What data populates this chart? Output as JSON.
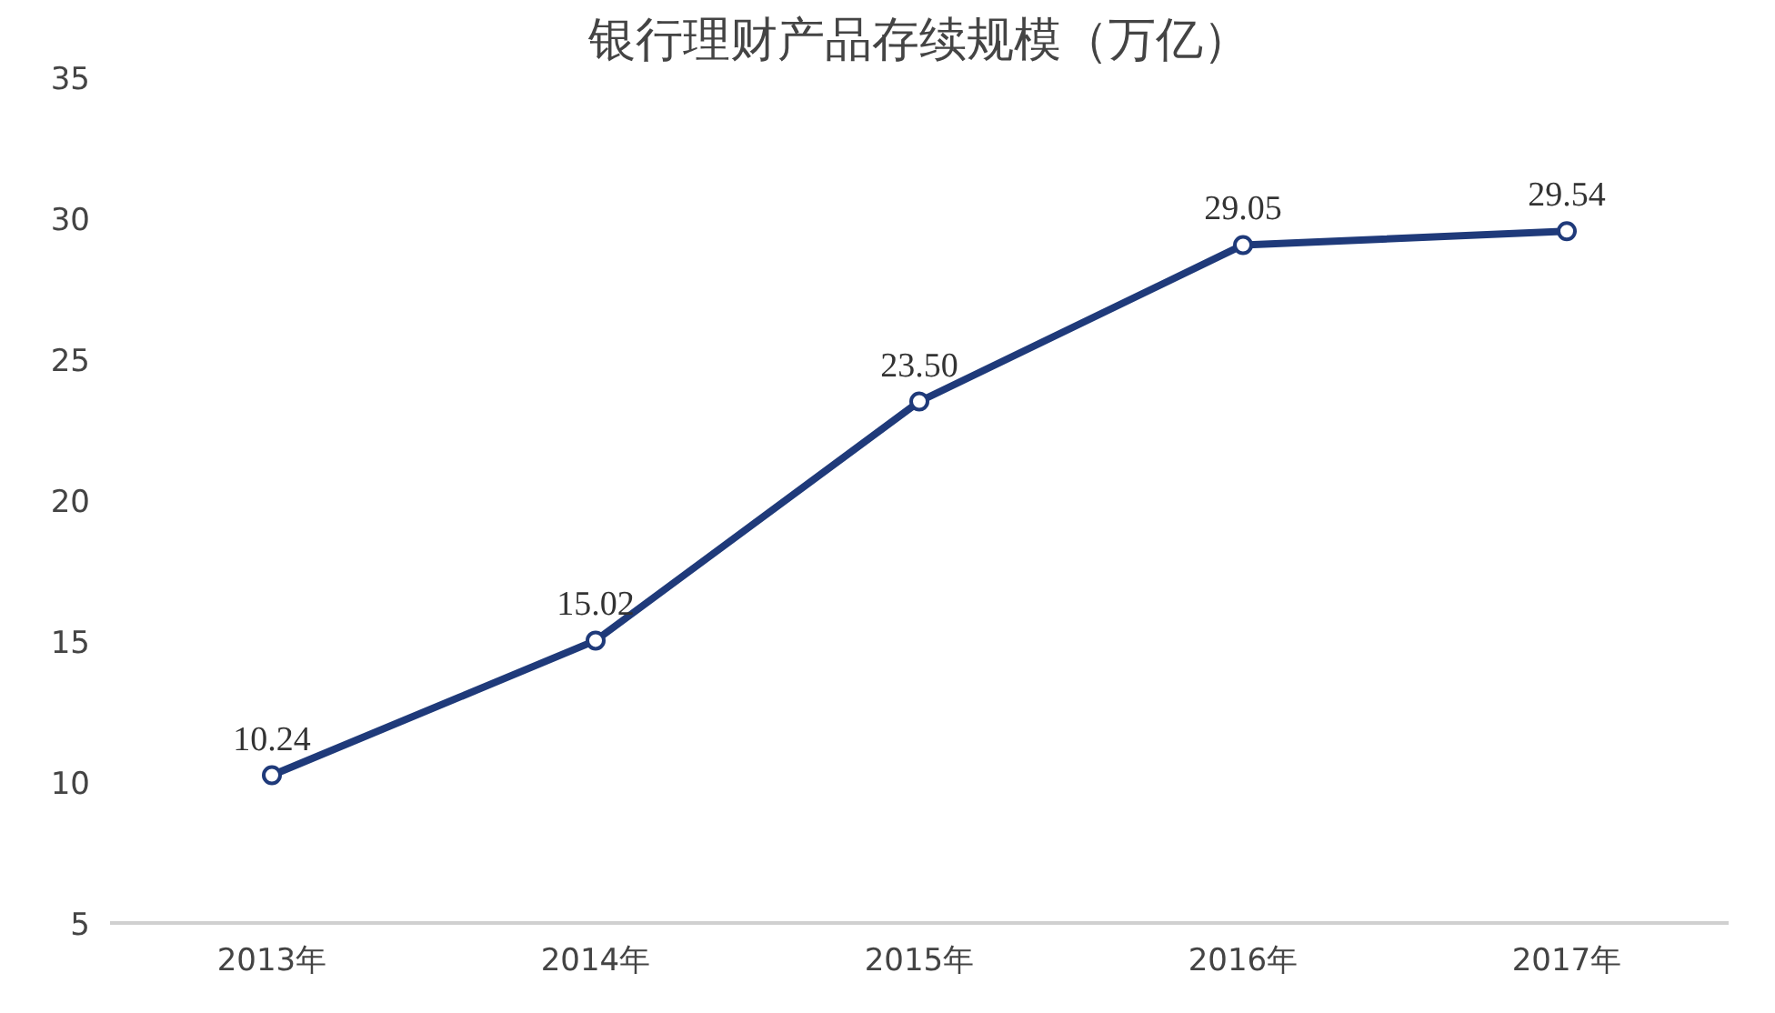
{
  "chart_data": {
    "type": "line",
    "title": "银行理财产品存续规模（万亿）",
    "categories": [
      "2013年",
      "2014年",
      "2015年",
      "2016年",
      "2017年"
    ],
    "series": [
      {
        "color": "#1f3a7a",
        "values": [
          10.24,
          15.02,
          23.5,
          29.05,
          29.54
        ]
      }
    ],
    "value_labels": [
      "10.24",
      "15.02",
      "23.50",
      "29.05",
      "29.54"
    ],
    "ylim": [
      5,
      35
    ],
    "yticks": [
      5,
      10,
      15,
      20,
      25,
      30,
      35
    ],
    "grid": false,
    "marker": "circle",
    "line_style": "solid"
  }
}
